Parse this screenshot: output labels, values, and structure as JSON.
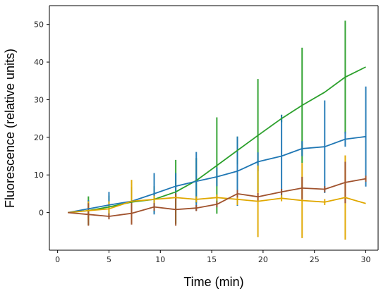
{
  "chart_data": {
    "type": "line",
    "title": "",
    "xlabel": "Time (min)",
    "ylabel": "Fluorescence (relative units)",
    "xlim": [
      -0.8,
      31.2
    ],
    "ylim": [
      -10,
      55
    ],
    "xticks": [
      0,
      5,
      10,
      15,
      20,
      25,
      30
    ],
    "yticks": [
      0,
      10,
      20,
      30,
      40,
      50
    ],
    "grid": false,
    "series": [
      {
        "color": "#2ca02c",
        "points": [
          {
            "x": 1,
            "y": 0,
            "err": 0
          },
          {
            "x": 3,
            "y": 0.5,
            "err": 3.8
          },
          {
            "x": 5,
            "y": 1.5,
            "err": 3
          },
          {
            "x": 7.2,
            "y": 2.8,
            "err": 4
          },
          {
            "x": 9.4,
            "y": 3.5,
            "err": 3.5
          },
          {
            "x": 11.5,
            "y": 5.5,
            "err": 8.5
          },
          {
            "x": 13.5,
            "y": 8.5,
            "err": 6
          },
          {
            "x": 15.5,
            "y": 12.5,
            "err": 12.8
          },
          {
            "x": 17.5,
            "y": 16.5,
            "err": 3.7
          },
          {
            "x": 19.5,
            "y": 20.5,
            "err": 15
          },
          {
            "x": 21.8,
            "y": 25,
            "err": 1
          },
          {
            "x": 23.8,
            "y": 28.5,
            "err": 15.3
          },
          {
            "x": 26,
            "y": 32,
            "err": 0
          },
          {
            "x": 28,
            "y": 36,
            "err": 15
          },
          {
            "x": 30,
            "y": 38.7,
            "err": 0
          }
        ]
      },
      {
        "color": "#1f77b4",
        "points": [
          {
            "x": 1,
            "y": 0,
            "err": 0
          },
          {
            "x": 3,
            "y": 1,
            "err": 2.3
          },
          {
            "x": 5,
            "y": 2,
            "err": 3.5
          },
          {
            "x": 7.2,
            "y": 3,
            "err": 3
          },
          {
            "x": 9.4,
            "y": 5,
            "err": 5.5
          },
          {
            "x": 11.5,
            "y": 7,
            "err": 3.5
          },
          {
            "x": 13.5,
            "y": 8.3,
            "err": 7.8
          },
          {
            "x": 15.5,
            "y": 9.5,
            "err": 2.5
          },
          {
            "x": 17.5,
            "y": 11,
            "err": 9.2
          },
          {
            "x": 19.5,
            "y": 13.5,
            "err": 2.5
          },
          {
            "x": 21.8,
            "y": 15,
            "err": 11
          },
          {
            "x": 23.8,
            "y": 17,
            "err": 2
          },
          {
            "x": 26,
            "y": 17.5,
            "err": 12.3
          },
          {
            "x": 28,
            "y": 19.5,
            "err": 2
          },
          {
            "x": 30,
            "y": 20.2,
            "err": 13.3
          }
        ]
      },
      {
        "color": "#e0a800",
        "points": [
          {
            "x": 1,
            "y": 0,
            "err": 0
          },
          {
            "x": 3,
            "y": 0.5,
            "err": 2.5
          },
          {
            "x": 5,
            "y": 1,
            "err": 2
          },
          {
            "x": 7.2,
            "y": 3,
            "err": 5.7
          },
          {
            "x": 9.4,
            "y": 3.5,
            "err": 1
          },
          {
            "x": 11.5,
            "y": 4,
            "err": 0.8
          },
          {
            "x": 13.5,
            "y": 3.5,
            "err": 0.8
          },
          {
            "x": 15.5,
            "y": 4,
            "err": 0.8
          },
          {
            "x": 17.5,
            "y": 3.5,
            "err": 1.5
          },
          {
            "x": 19.5,
            "y": 3,
            "err": 9.5
          },
          {
            "x": 21.8,
            "y": 3.8,
            "err": 0.8
          },
          {
            "x": 23.8,
            "y": 3.2,
            "err": 10
          },
          {
            "x": 26,
            "y": 2.8,
            "err": 0.8
          },
          {
            "x": 28,
            "y": 4,
            "err": 11.2
          },
          {
            "x": 30,
            "y": 2.4,
            "err": 0
          }
        ]
      },
      {
        "color": "#a0522d",
        "points": [
          {
            "x": 1,
            "y": 0,
            "err": 0
          },
          {
            "x": 3,
            "y": -0.5,
            "err": 3
          },
          {
            "x": 5,
            "y": -1,
            "err": 0.8
          },
          {
            "x": 7.2,
            "y": -0.2,
            "err": 3
          },
          {
            "x": 9.4,
            "y": 1.5,
            "err": 1
          },
          {
            "x": 11.5,
            "y": 0.8,
            "err": 4.3
          },
          {
            "x": 13.5,
            "y": 1.2,
            "err": 0.8
          },
          {
            "x": 15.5,
            "y": 2.2,
            "err": 0.8
          },
          {
            "x": 17.5,
            "y": 5,
            "err": 1
          },
          {
            "x": 19.5,
            "y": 4.2,
            "err": 1
          },
          {
            "x": 21.8,
            "y": 5.5,
            "err": 0.8
          },
          {
            "x": 23.8,
            "y": 6.5,
            "err": 3
          },
          {
            "x": 26,
            "y": 6.2,
            "err": 0.8
          },
          {
            "x": 28,
            "y": 8,
            "err": 5.5
          },
          {
            "x": 30,
            "y": 9,
            "err": 0.8
          }
        ]
      }
    ]
  }
}
